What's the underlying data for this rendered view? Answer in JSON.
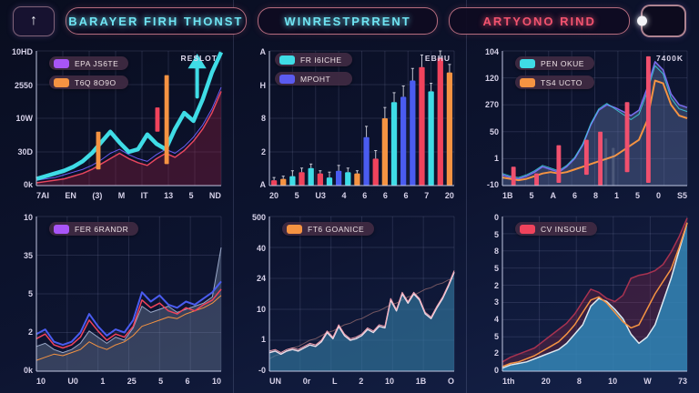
{
  "header": {
    "left_icon": "arrow-up",
    "right_icon": "toggle-dot",
    "buttons": [
      {
        "label": "BARAYER FIRH THONST",
        "color": "#6fe3f2"
      },
      {
        "label": "WINRESTPRRENT",
        "color": "#6fe3f2"
      },
      {
        "label": "ARTYONO RIND",
        "color": "#f2536f"
      }
    ]
  },
  "colors": {
    "background": "#0d1430",
    "accent_cyan": "#3fdce6",
    "accent_orange": "#f59342",
    "accent_red": "#f0435c",
    "accent_blue": "#4a5cf0",
    "accent_purple": "#a855f7",
    "pill_border": "#de8496",
    "grid_line": "#9aa3c8"
  },
  "chart_data": [
    {
      "type": "area",
      "position": "top-left",
      "annotation": "RESLOT",
      "arrow_up": true,
      "legend": [
        {
          "label": "EPA JS6TE",
          "color": "#a855f7"
        },
        {
          "label": "T6Q 8O9O",
          "color": "#f59342"
        }
      ],
      "y_ticks": [
        "10HD",
        "2550",
        "10W",
        "30D",
        "0k"
      ],
      "x_ticks": [
        "7AI",
        "EN",
        "(3)",
        "M",
        "IT",
        "13",
        "5",
        "ND"
      ],
      "ylim": [
        0,
        100
      ],
      "series": [
        {
          "name": "crimson-area",
          "color": "#e8465e",
          "fill": "rgba(150,30,60,0.35)",
          "width": 1.5,
          "values": [
            2,
            3,
            4,
            5,
            7,
            9,
            12,
            16,
            20,
            24,
            20,
            17,
            15,
            20,
            24,
            21,
            26,
            33,
            42,
            54,
            70
          ]
        },
        {
          "name": "blue-line",
          "color": "#6a5cf0",
          "width": 1,
          "values": [
            4,
            5,
            6,
            8,
            10,
            12,
            15,
            19,
            24,
            27,
            23,
            20,
            18,
            23,
            27,
            24,
            29,
            36,
            45,
            57,
            73
          ]
        },
        {
          "name": "cyan-band",
          "color": "#3fdce6",
          "width": 4.5,
          "values": [
            5,
            7,
            9,
            11,
            14,
            18,
            24,
            32,
            40,
            32,
            25,
            27,
            38,
            31,
            27,
            42,
            54,
            48,
            64,
            84,
            99
          ]
        }
      ],
      "candles": [
        {
          "x": 0.335,
          "y0": 12,
          "y1": 40,
          "color": "#f59342"
        },
        {
          "x": 0.655,
          "y0": 40,
          "y1": 58,
          "color": "#f0435c"
        },
        {
          "x": 0.705,
          "y0": 16,
          "y1": 82,
          "color": "#f59342"
        }
      ]
    },
    {
      "type": "bar",
      "position": "top-middle",
      "annotation": "EBHU",
      "legend": [
        {
          "label": "FR I6ICHE",
          "color": "#3fdce6"
        },
        {
          "label": "MPOHT",
          "color": "#5b5bf0"
        }
      ],
      "y_ticks": [
        "A",
        "H",
        "8",
        "2",
        "A"
      ],
      "x_ticks": [
        "20",
        "5",
        "U3",
        "4",
        "6",
        "6",
        "6",
        "7",
        "20"
      ],
      "ylim": [
        0,
        100
      ],
      "bars": {
        "values": [
          4,
          5,
          7,
          10,
          13,
          9,
          6,
          11,
          10,
          9,
          36,
          20,
          50,
          62,
          66,
          78,
          88,
          70,
          95,
          84
        ],
        "colors": [
          "#f0435c",
          "#f59342",
          "#3fdce6",
          "#f0435c",
          "#3fdce6",
          "#f0435c",
          "#3fdce6",
          "#4a5cf0",
          "#3fdce6",
          "#f59342",
          "#4a5cf0",
          "#f0435c",
          "#f59342",
          "#3fdce6",
          "#4a5cf0",
          "#4a5cf0",
          "#f0435c",
          "#3fdce6",
          "#f0435c",
          "#f59342"
        ],
        "whiskers": [
          2,
          2,
          4,
          3,
          3,
          2,
          4,
          4,
          3,
          2,
          8,
          6,
          8,
          7,
          8,
          9,
          9,
          6,
          5,
          6
        ]
      }
    },
    {
      "type": "area",
      "position": "top-right",
      "annotation": "7400K",
      "legend": [
        {
          "label": "PEN OKUE",
          "color": "#3fdce6"
        },
        {
          "label": "TS4 UCTO",
          "color": "#f59342"
        }
      ],
      "y_ticks": [
        "104",
        "120",
        "270",
        "50",
        "1",
        "-10"
      ],
      "x_ticks": [
        "1B",
        "5",
        "A",
        "6",
        "8",
        "1",
        "5",
        "0",
        "S5"
      ],
      "ylim": [
        0,
        100
      ],
      "series": [
        {
          "name": "bluegrey-area",
          "color": "#7a6cf0",
          "fill": "rgba(100,120,170,0.40)",
          "width": 1.5,
          "values": [
            8,
            6,
            5,
            7,
            10,
            14,
            12,
            10,
            14,
            20,
            30,
            45,
            56,
            60,
            58,
            55,
            52,
            56,
            72,
            92,
            86,
            68,
            60,
            58
          ]
        },
        {
          "name": "cyan-line",
          "color": "rgba(63,220,230,0.8)",
          "width": 1,
          "values": [
            9,
            7,
            6,
            8,
            11,
            15,
            13,
            11,
            15,
            21,
            31,
            46,
            57,
            61,
            57,
            53,
            49,
            53,
            69,
            89,
            83,
            65,
            57,
            55
          ]
        },
        {
          "name": "orange-line",
          "color": "#f59342",
          "width": 2,
          "values": [
            6,
            5,
            4,
            5,
            7,
            9,
            10,
            9,
            10,
            12,
            14,
            16,
            18,
            20,
            22,
            26,
            30,
            34,
            48,
            78,
            76,
            60,
            52,
            50
          ]
        }
      ],
      "candles": [
        {
          "x": 0.06,
          "y0": 0,
          "y1": 14,
          "color": "#f0506e"
        },
        {
          "x": 0.185,
          "y0": 0,
          "y1": 9,
          "color": "#f0506e"
        },
        {
          "x": 0.305,
          "y0": 2,
          "y1": 30,
          "color": "#f0506e"
        },
        {
          "x": 0.455,
          "y0": 8,
          "y1": 34,
          "color": "#f0506e"
        },
        {
          "x": 0.56,
          "y0": 0,
          "y1": 35,
          "color": "rgba(160,170,190,0.25)",
          "w": 1.5
        },
        {
          "x": 0.6,
          "y0": 0,
          "y1": 28,
          "color": "rgba(160,170,190,0.25)",
          "w": 1.5
        },
        {
          "x": 0.53,
          "y0": 0,
          "y1": 40,
          "color": "#f0506e"
        },
        {
          "x": 0.675,
          "y0": 10,
          "y1": 62,
          "color": "#f0506e"
        },
        {
          "x": 0.79,
          "y0": 2,
          "y1": 96,
          "color": "#f0506e"
        }
      ]
    },
    {
      "type": "line",
      "position": "bottom-left",
      "annotation": "",
      "legend": [
        {
          "label": "FER 6RANDR",
          "color": "#a855f7"
        }
      ],
      "y_ticks": [
        "10",
        "35",
        "5",
        "2",
        "0k"
      ],
      "x_ticks": [
        "10",
        "U0",
        "1",
        "25",
        "5",
        "6",
        "10"
      ],
      "ylim": [
        0,
        100
      ],
      "series": [
        {
          "name": "grey-area",
          "color": "#9aa8c8",
          "fill": "rgba(130,145,175,0.35)",
          "width": 1,
          "values": [
            16,
            18,
            14,
            12,
            14,
            18,
            26,
            22,
            18,
            22,
            20,
            28,
            42,
            38,
            40,
            42,
            38,
            40,
            42,
            44,
            48,
            80
          ]
        },
        {
          "name": "orange-line",
          "color": "#f59342",
          "width": 1,
          "values": [
            7,
            9,
            11,
            10,
            12,
            14,
            19,
            16,
            14,
            17,
            19,
            23,
            29,
            31,
            33,
            35,
            34,
            37,
            39,
            41,
            44,
            49
          ]
        },
        {
          "name": "blue-line",
          "color": "#4a5cf0",
          "width": 2,
          "values": [
            24,
            27,
            19,
            17,
            19,
            25,
            37,
            29,
            23,
            27,
            25,
            33,
            51,
            45,
            49,
            43,
            41,
            45,
            43,
            47,
            51,
            58
          ]
        },
        {
          "name": "red-line",
          "color": "#f0435c",
          "width": 1.5,
          "values": [
            21,
            24,
            17,
            15,
            17,
            22,
            33,
            26,
            20,
            24,
            22,
            29,
            46,
            41,
            44,
            39,
            37,
            41,
            39,
            43,
            46,
            53
          ]
        }
      ]
    },
    {
      "type": "area",
      "position": "bottom-middle",
      "annotation": "",
      "legend": [
        {
          "label": "FT6 GOANICE",
          "color": "#f59342"
        }
      ],
      "y_ticks": [
        "500",
        "40",
        "24",
        "10",
        "1",
        "-0"
      ],
      "x_ticks": [
        "UN",
        "0r",
        "L",
        "2",
        "10",
        "1B",
        "O"
      ],
      "ylim": [
        0,
        100
      ],
      "series": [
        {
          "name": "trend-line",
          "color": "rgba(220,150,140,0.5)",
          "width": 1,
          "values": [
            8,
            10,
            11,
            13,
            15,
            16,
            18,
            20,
            21,
            23,
            25,
            26,
            28,
            30,
            31,
            33,
            34,
            36,
            38,
            39,
            41,
            43,
            44,
            46,
            48,
            49,
            51,
            53,
            54,
            56,
            57,
            59,
            60
          ]
        },
        {
          "name": "teal-area",
          "color": "#e8dce8",
          "fill": "rgba(50,120,160,0.65)",
          "width": 1.5,
          "values": [
            12,
            13,
            11,
            13,
            14,
            13,
            15,
            17,
            16,
            19,
            25,
            21,
            29,
            23,
            20,
            21,
            23,
            27,
            25,
            29,
            28,
            46,
            39,
            50,
            44,
            50,
            46,
            37,
            34,
            41,
            47,
            55,
            64
          ]
        },
        {
          "name": "pink-line",
          "color": "#f2a0b0",
          "width": 1,
          "values": [
            13,
            14,
            12,
            14,
            15,
            14,
            16,
            18,
            17,
            20,
            26,
            22,
            30,
            24,
            21,
            22,
            24,
            28,
            26,
            30,
            29,
            47,
            40,
            51,
            45,
            51,
            47,
            38,
            35,
            42,
            48,
            56,
            65
          ]
        }
      ]
    },
    {
      "type": "area",
      "position": "bottom-right",
      "annotation": "",
      "legend": [
        {
          "label": "CV INSOUE",
          "color": "#f0435c"
        }
      ],
      "y_ticks": [
        "0",
        "5",
        "8",
        "5",
        "2",
        "3",
        "4",
        "5",
        "2",
        "0"
      ],
      "x_ticks": [
        "1th",
        "20",
        "8",
        "10",
        "W",
        "73"
      ],
      "ylim": [
        0,
        100
      ],
      "series": [
        {
          "name": "maroon-area",
          "color": "#a83250",
          "fill": "rgba(150,40,70,0.30)",
          "width": 1.5,
          "values": [
            6,
            9,
            11,
            13,
            15,
            19,
            23,
            27,
            31,
            37,
            45,
            53,
            51,
            47,
            45,
            49,
            60,
            62,
            63,
            65,
            69,
            77,
            87,
            99
          ]
        },
        {
          "name": "blue-area",
          "color": "#dce8f0",
          "fill": "rgba(45,140,190,0.80)",
          "width": 1.5,
          "values": [
            2,
            4,
            5,
            6,
            8,
            10,
            12,
            14,
            18,
            24,
            30,
            42,
            47,
            45,
            40,
            34,
            24,
            18,
            22,
            30,
            45,
            60,
            78,
            96
          ]
        },
        {
          "name": "orange-line",
          "color": "#f59342",
          "width": 1.5,
          "values": [
            3,
            5,
            6,
            8,
            10,
            13,
            16,
            19,
            24,
            30,
            38,
            46,
            48,
            44,
            38,
            32,
            28,
            30,
            40,
            50,
            58,
            66,
            80,
            96
          ]
        }
      ]
    }
  ]
}
